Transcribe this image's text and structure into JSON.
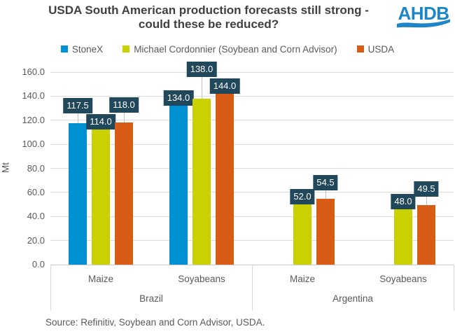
{
  "header": {
    "title_line1": "USDA South American production forecasts still strong -",
    "title_line2": "could these be reduced?",
    "logo_text": "AHDB",
    "logo_color": "#1C86C9"
  },
  "chart_data": {
    "type": "bar",
    "title": "USDA South American production forecasts still strong - could these be reduced?",
    "ylabel": "Mt",
    "ylim": [
      0,
      160
    ],
    "yticks": [
      "0.0",
      "20.0",
      "40.0",
      "60.0",
      "80.0",
      "100.0",
      "120.0",
      "140.0",
      "160.0"
    ],
    "grid": true,
    "legend_position": "top",
    "groups": [
      "Brazil",
      "Argentina"
    ],
    "categories": [
      [
        "Maize",
        "Soyabeans"
      ],
      [
        "Maize",
        "Soyabeans"
      ]
    ],
    "series": [
      {
        "name": "StoneX",
        "color": "#0091D4",
        "values": [
          [
            117.5,
            134.0
          ],
          [
            null,
            null
          ]
        ]
      },
      {
        "name": "Michael Cordonnier (Soybean and Corn Advisor)",
        "color": "#C9D200",
        "values": [
          [
            114.0,
            138.0
          ],
          [
            52.0,
            48.0
          ]
        ]
      },
      {
        "name": "USDA",
        "color": "#D85C16",
        "values": [
          [
            118.0,
            144.0
          ],
          [
            54.5,
            49.5
          ]
        ]
      }
    ],
    "data_label_box_color": "#21475A",
    "data_label_text_color": "#FFFFFF"
  },
  "source": "Source: Refinitiv, Soybean and Corn Advisor, USDA."
}
